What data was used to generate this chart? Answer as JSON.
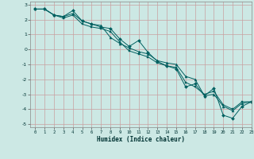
{
  "xlabel": "Humidex (Indice chaleur)",
  "ylabel": "",
  "xlim": [
    -0.5,
    23
  ],
  "ylim": [
    -5.2,
    3.2
  ],
  "xticks": [
    0,
    1,
    2,
    3,
    4,
    5,
    6,
    7,
    8,
    9,
    10,
    11,
    12,
    13,
    14,
    15,
    16,
    17,
    18,
    19,
    20,
    21,
    22,
    23
  ],
  "yticks": [
    -5,
    -4,
    -3,
    -2,
    -1,
    0,
    1,
    2,
    3
  ],
  "background_color": "#cce8e4",
  "grid_color_h": "#c8a0a0",
  "grid_color_v": "#c8a0a0",
  "line_color": "#006060",
  "series1_x": [
    0,
    1,
    2,
    3,
    4,
    5,
    6,
    7,
    8,
    9,
    10,
    11,
    12,
    13,
    14,
    15,
    16,
    17,
    18,
    19,
    20,
    21,
    22,
    23
  ],
  "series1_y": [
    2.7,
    2.7,
    2.3,
    2.2,
    2.6,
    1.9,
    1.7,
    1.5,
    1.4,
    0.7,
    0.2,
    0.6,
    -0.2,
    -0.8,
    -1.1,
    -1.3,
    -2.5,
    -2.3,
    -3.1,
    -2.6,
    -4.4,
    -4.6,
    -3.8,
    -3.5
  ],
  "series2_x": [
    0,
    1,
    2,
    3,
    4,
    5,
    6,
    7,
    8,
    9,
    10,
    11,
    12,
    13,
    14,
    15,
    16,
    17,
    18,
    19,
    20,
    21,
    22,
    23
  ],
  "series2_y": [
    2.7,
    2.7,
    2.3,
    2.2,
    2.4,
    1.9,
    1.7,
    1.6,
    0.8,
    0.4,
    0.1,
    -0.15,
    -0.3,
    -0.75,
    -0.9,
    -1.0,
    -1.8,
    -2.0,
    -3.1,
    -3.0,
    -3.8,
    -4.1,
    -3.6,
    -3.5
  ],
  "series3_x": [
    0,
    1,
    2,
    3,
    4,
    5,
    6,
    7,
    8,
    9,
    10,
    11,
    12,
    13,
    14,
    15,
    16,
    17,
    18,
    19,
    20,
    21,
    22,
    23
  ],
  "series3_y": [
    2.7,
    2.7,
    2.3,
    2.1,
    2.3,
    1.7,
    1.5,
    1.4,
    1.2,
    0.5,
    -0.1,
    -0.3,
    -0.5,
    -0.9,
    -1.1,
    -1.2,
    -2.2,
    -2.5,
    -3.0,
    -2.8,
    -3.7,
    -4.0,
    -3.5,
    -3.5
  ]
}
